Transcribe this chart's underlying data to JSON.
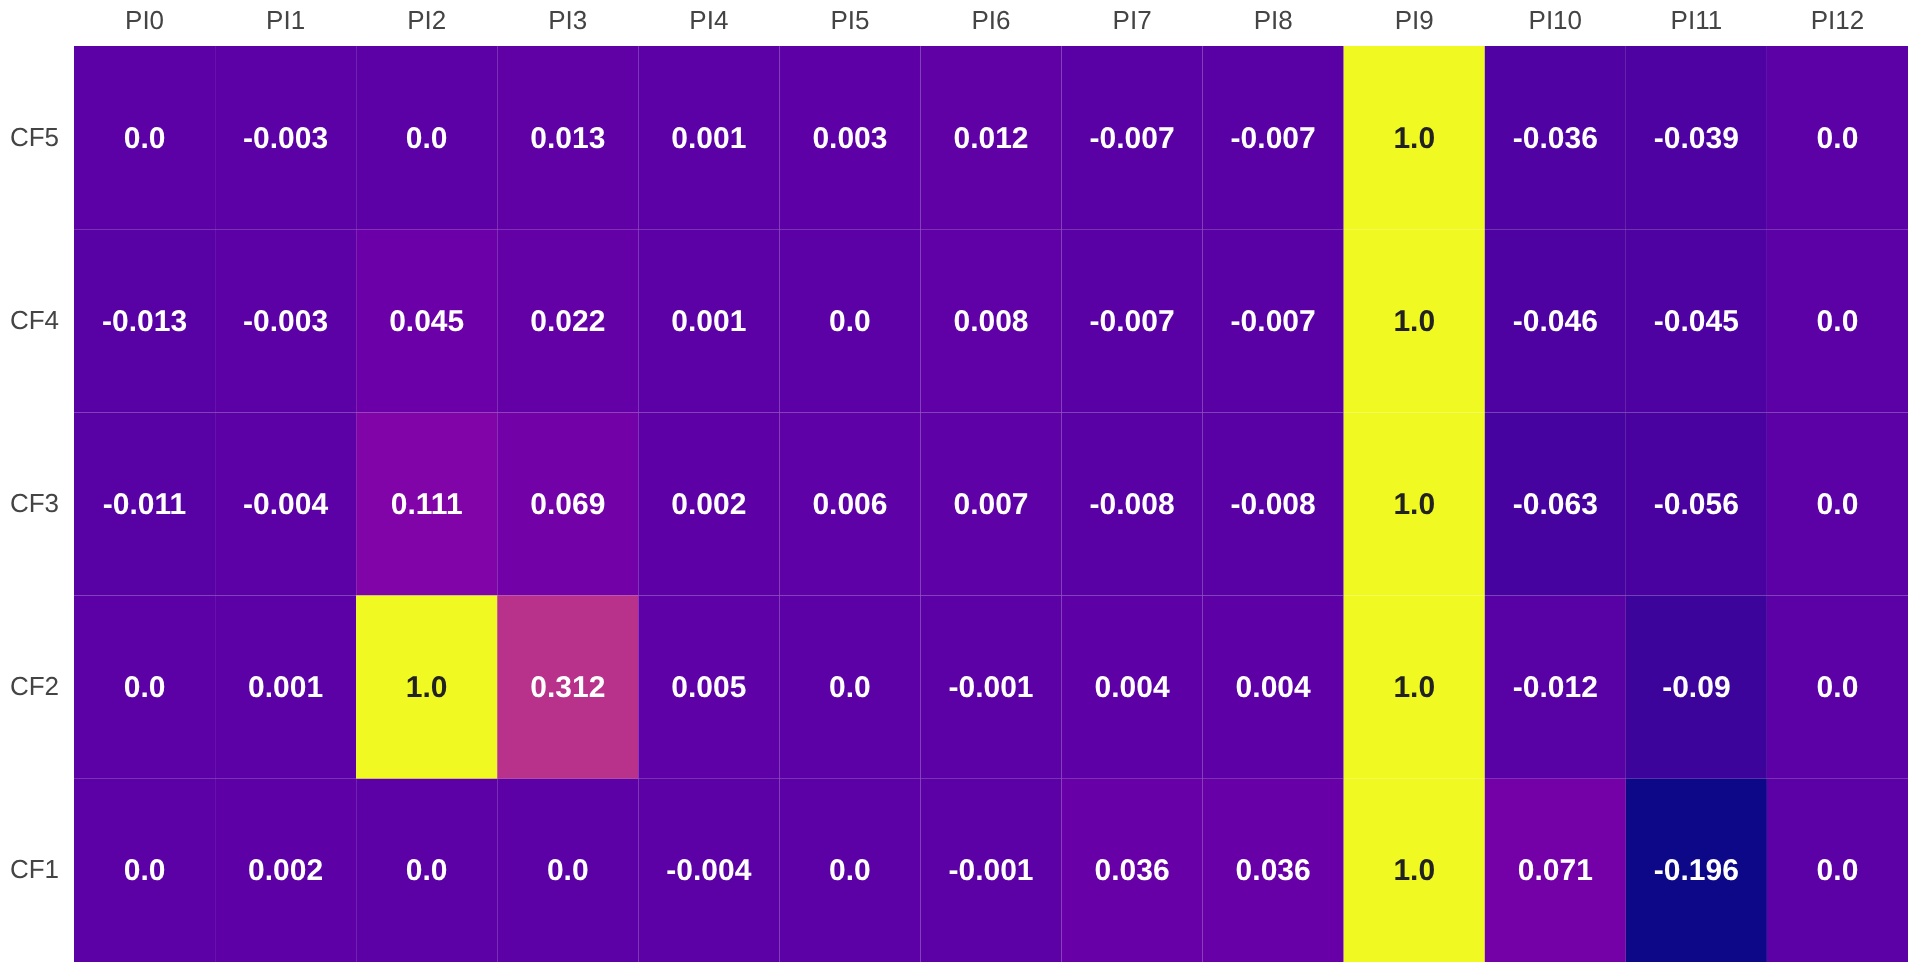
{
  "chart_data": {
    "type": "heatmap",
    "categories": [
      "PI0",
      "PI1",
      "PI2",
      "PI3",
      "PI4",
      "PI5",
      "PI6",
      "PI7",
      "PI8",
      "PI9",
      "PI10",
      "PI11",
      "PI12"
    ],
    "y_categories": [
      "CF5",
      "CF4",
      "CF3",
      "CF2",
      "CF1"
    ],
    "cells": [
      [
        0.0,
        -0.003,
        0.0,
        0.013,
        0.001,
        0.003,
        0.012,
        -0.007,
        -0.007,
        1.0,
        -0.036,
        -0.039,
        0.0
      ],
      [
        -0.013,
        -0.003,
        0.045,
        0.022,
        0.001,
        0.0,
        0.008,
        -0.007,
        -0.007,
        1.0,
        -0.046,
        -0.045,
        0.0
      ],
      [
        -0.011,
        -0.004,
        0.111,
        0.069,
        0.002,
        0.006,
        0.007,
        -0.008,
        -0.008,
        1.0,
        -0.063,
        -0.056,
        0.0
      ],
      [
        0.0,
        0.001,
        1.0,
        0.312,
        0.005,
        0.0,
        -0.001,
        0.004,
        0.004,
        1.0,
        -0.012,
        -0.09,
        0.0
      ],
      [
        0.0,
        0.002,
        0.0,
        0.0,
        -0.004,
        0.0,
        -0.001,
        0.036,
        0.036,
        1.0,
        0.071,
        -0.196,
        0.0
      ]
    ],
    "cell_labels": [
      [
        "0.0",
        "-0.003",
        "0.0",
        "0.013",
        "0.001",
        "0.003",
        "0.012",
        "-0.007",
        "-0.007",
        "1.0",
        "-0.036",
        "-0.039",
        "0.0"
      ],
      [
        "-0.013",
        "-0.003",
        "0.045",
        "0.022",
        "0.001",
        "0.0",
        "0.008",
        "-0.007",
        "-0.007",
        "1.0",
        "-0.046",
        "-0.045",
        "0.0"
      ],
      [
        "-0.011",
        "-0.004",
        "0.111",
        "0.069",
        "0.002",
        "0.006",
        "0.007",
        "-0.008",
        "-0.008",
        "1.0",
        "-0.063",
        "-0.056",
        "0.0"
      ],
      [
        "0.0",
        "0.001",
        "1.0",
        "0.312",
        "0.005",
        "0.0",
        "-0.001",
        "0.004",
        "0.004",
        "1.0",
        "-0.012",
        "-0.09",
        "0.0"
      ],
      [
        "0.0",
        "0.002",
        "0.0",
        "0.0",
        "-0.004",
        "0.0",
        "-0.001",
        "0.036",
        "0.036",
        "1.0",
        "0.071",
        "-0.196",
        "0.0"
      ]
    ]
  }
}
